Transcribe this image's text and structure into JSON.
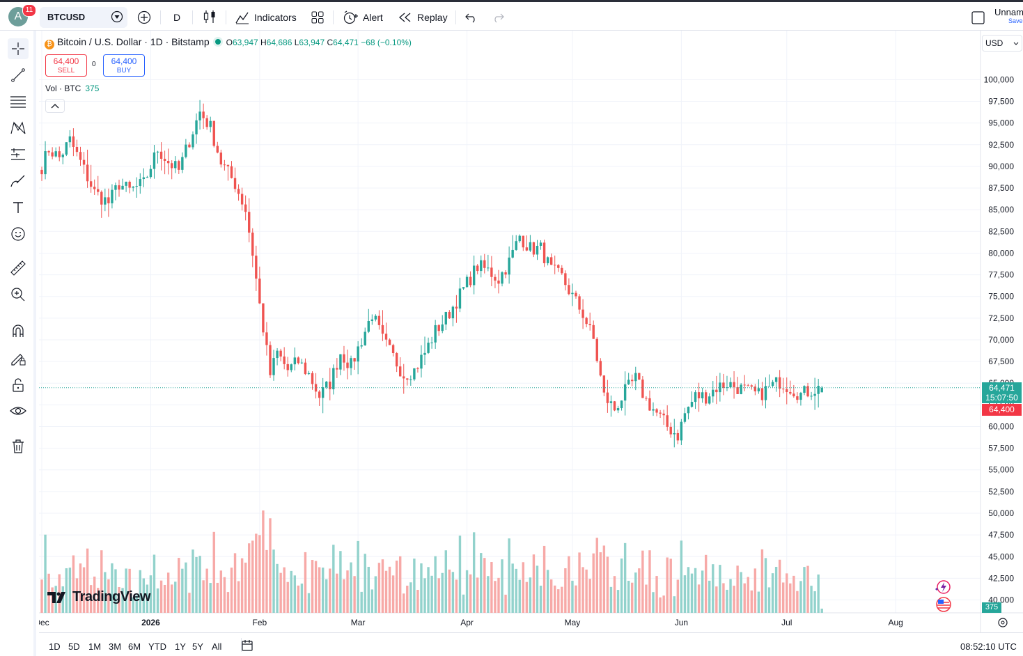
{
  "header": {
    "avatar_letter": "A",
    "notification_count": "11",
    "symbol": "BTCUSD",
    "interval": "D",
    "indicators_label": "Indicators",
    "alert_label": "Alert",
    "replay_label": "Replay",
    "layout_name": "Unnam",
    "layout_status": "Save"
  },
  "legend": {
    "title": "Bitcoin / U.S. Dollar · 1D · Bitstamp",
    "open_label": "O",
    "open": "63,947",
    "high_label": "H",
    "high": "64,686",
    "low_label": "L",
    "low": "63,947",
    "close_label": "C",
    "close": "64,471",
    "change": "−68 (−0.10%)"
  },
  "trade": {
    "sell_price": "64,400",
    "sell_label": "SELL",
    "spread": "0",
    "buy_price": "64,400",
    "buy_label": "BUY"
  },
  "volume_legend": {
    "label": "Vol · BTC",
    "value": "375"
  },
  "currency": "USD",
  "price_tags": {
    "last": "64,471",
    "countdown": "15:07:50",
    "bid": "64,400",
    "volume": "375"
  },
  "watermark": "TradingView",
  "ranges": [
    "1D",
    "5D",
    "1M",
    "3M",
    "6M",
    "YTD",
    "1Y",
    "5Y",
    "All"
  ],
  "clock": "08:52:10 UTC",
  "colors": {
    "up": "#26a69a",
    "down": "#ef5350",
    "up_vol": "#92d2cc",
    "down_vol": "#f7a9a7",
    "accent": "#2962ff"
  },
  "chart_data": {
    "type": "candlestick",
    "y_axis": {
      "min": 37500,
      "max": 100000,
      "step": 2500
    },
    "y_ticks": [
      "100,000",
      "97,500",
      "95,000",
      "92,500",
      "90,000",
      "87,500",
      "85,000",
      "82,500",
      "80,000",
      "77,500",
      "75,000",
      "72,500",
      "70,000",
      "67,500",
      "65,000",
      "62,500",
      "60,000",
      "57,500",
      "55,000",
      "52,500",
      "50,000",
      "47,500",
      "45,000",
      "42,500",
      "40,000"
    ],
    "x_ticks": [
      {
        "label": "Dec",
        "day": 0
      },
      {
        "label": "2026",
        "day": 31
      },
      {
        "label": "Feb",
        "day": 62
      },
      {
        "label": "Mar",
        "day": 90
      },
      {
        "label": "Apr",
        "day": 121
      },
      {
        "label": "May",
        "day": 151
      },
      {
        "label": "Jun",
        "day": 182
      },
      {
        "label": "Jul",
        "day": 212
      },
      {
        "label": "Aug",
        "day": 243
      }
    ],
    "anchors": [
      [
        0,
        90000
      ],
      [
        2,
        92000
      ],
      [
        5,
        91000
      ],
      [
        8,
        93000
      ],
      [
        11,
        90500
      ],
      [
        15,
        87000
      ],
      [
        19,
        85800
      ],
      [
        22,
        88000
      ],
      [
        25,
        87200
      ],
      [
        29,
        88000
      ],
      [
        33,
        92000
      ],
      [
        36,
        90500
      ],
      [
        39,
        89500
      ],
      [
        42,
        93000
      ],
      [
        45,
        96300
      ],
      [
        48,
        94500
      ],
      [
        51,
        90500
      ],
      [
        55,
        88000
      ],
      [
        58,
        85000
      ],
      [
        60,
        80000
      ],
      [
        62,
        74000
      ],
      [
        65,
        66000
      ],
      [
        67,
        68500
      ],
      [
        70,
        66500
      ],
      [
        73,
        67500
      ],
      [
        76,
        66000
      ],
      [
        79,
        63500
      ],
      [
        82,
        65000
      ],
      [
        85,
        68500
      ],
      [
        88,
        67000
      ],
      [
        91,
        70000
      ],
      [
        94,
        73000
      ],
      [
        97,
        70000
      ],
      [
        100,
        68000
      ],
      [
        103,
        66000
      ],
      [
        106,
        66500
      ],
      [
        109,
        68500
      ],
      [
        112,
        71000
      ],
      [
        115,
        72500
      ],
      [
        118,
        74500
      ],
      [
        121,
        76500
      ],
      [
        124,
        78500
      ],
      [
        127,
        78000
      ],
      [
        130,
        77000
      ],
      [
        133,
        79000
      ],
      [
        136,
        82000
      ],
      [
        139,
        80500
      ],
      [
        142,
        80500
      ],
      [
        145,
        78000
      ],
      [
        148,
        77200
      ],
      [
        151,
        75000
      ],
      [
        154,
        73000
      ],
      [
        157,
        70000
      ],
      [
        160,
        63500
      ],
      [
        163,
        62000
      ],
      [
        166,
        64000
      ],
      [
        169,
        65500
      ],
      [
        172,
        63000
      ],
      [
        175,
        61500
      ],
      [
        178,
        60000
      ],
      [
        181,
        59000
      ],
      [
        183,
        61500
      ],
      [
        186,
        63500
      ],
      [
        189,
        63500
      ],
      [
        192,
        64500
      ],
      [
        195,
        65000
      ],
      [
        198,
        64500
      ],
      [
        201,
        64000
      ],
      [
        204,
        63600
      ],
      [
        207,
        64500
      ],
      [
        210,
        65200
      ],
      [
        213,
        64500
      ],
      [
        216,
        63700
      ],
      [
        219,
        64200
      ],
      [
        222,
        64471
      ]
    ],
    "last": {
      "open": 63947,
      "high": 64686,
      "low": 63947,
      "close": 64471,
      "volume": 375
    }
  }
}
